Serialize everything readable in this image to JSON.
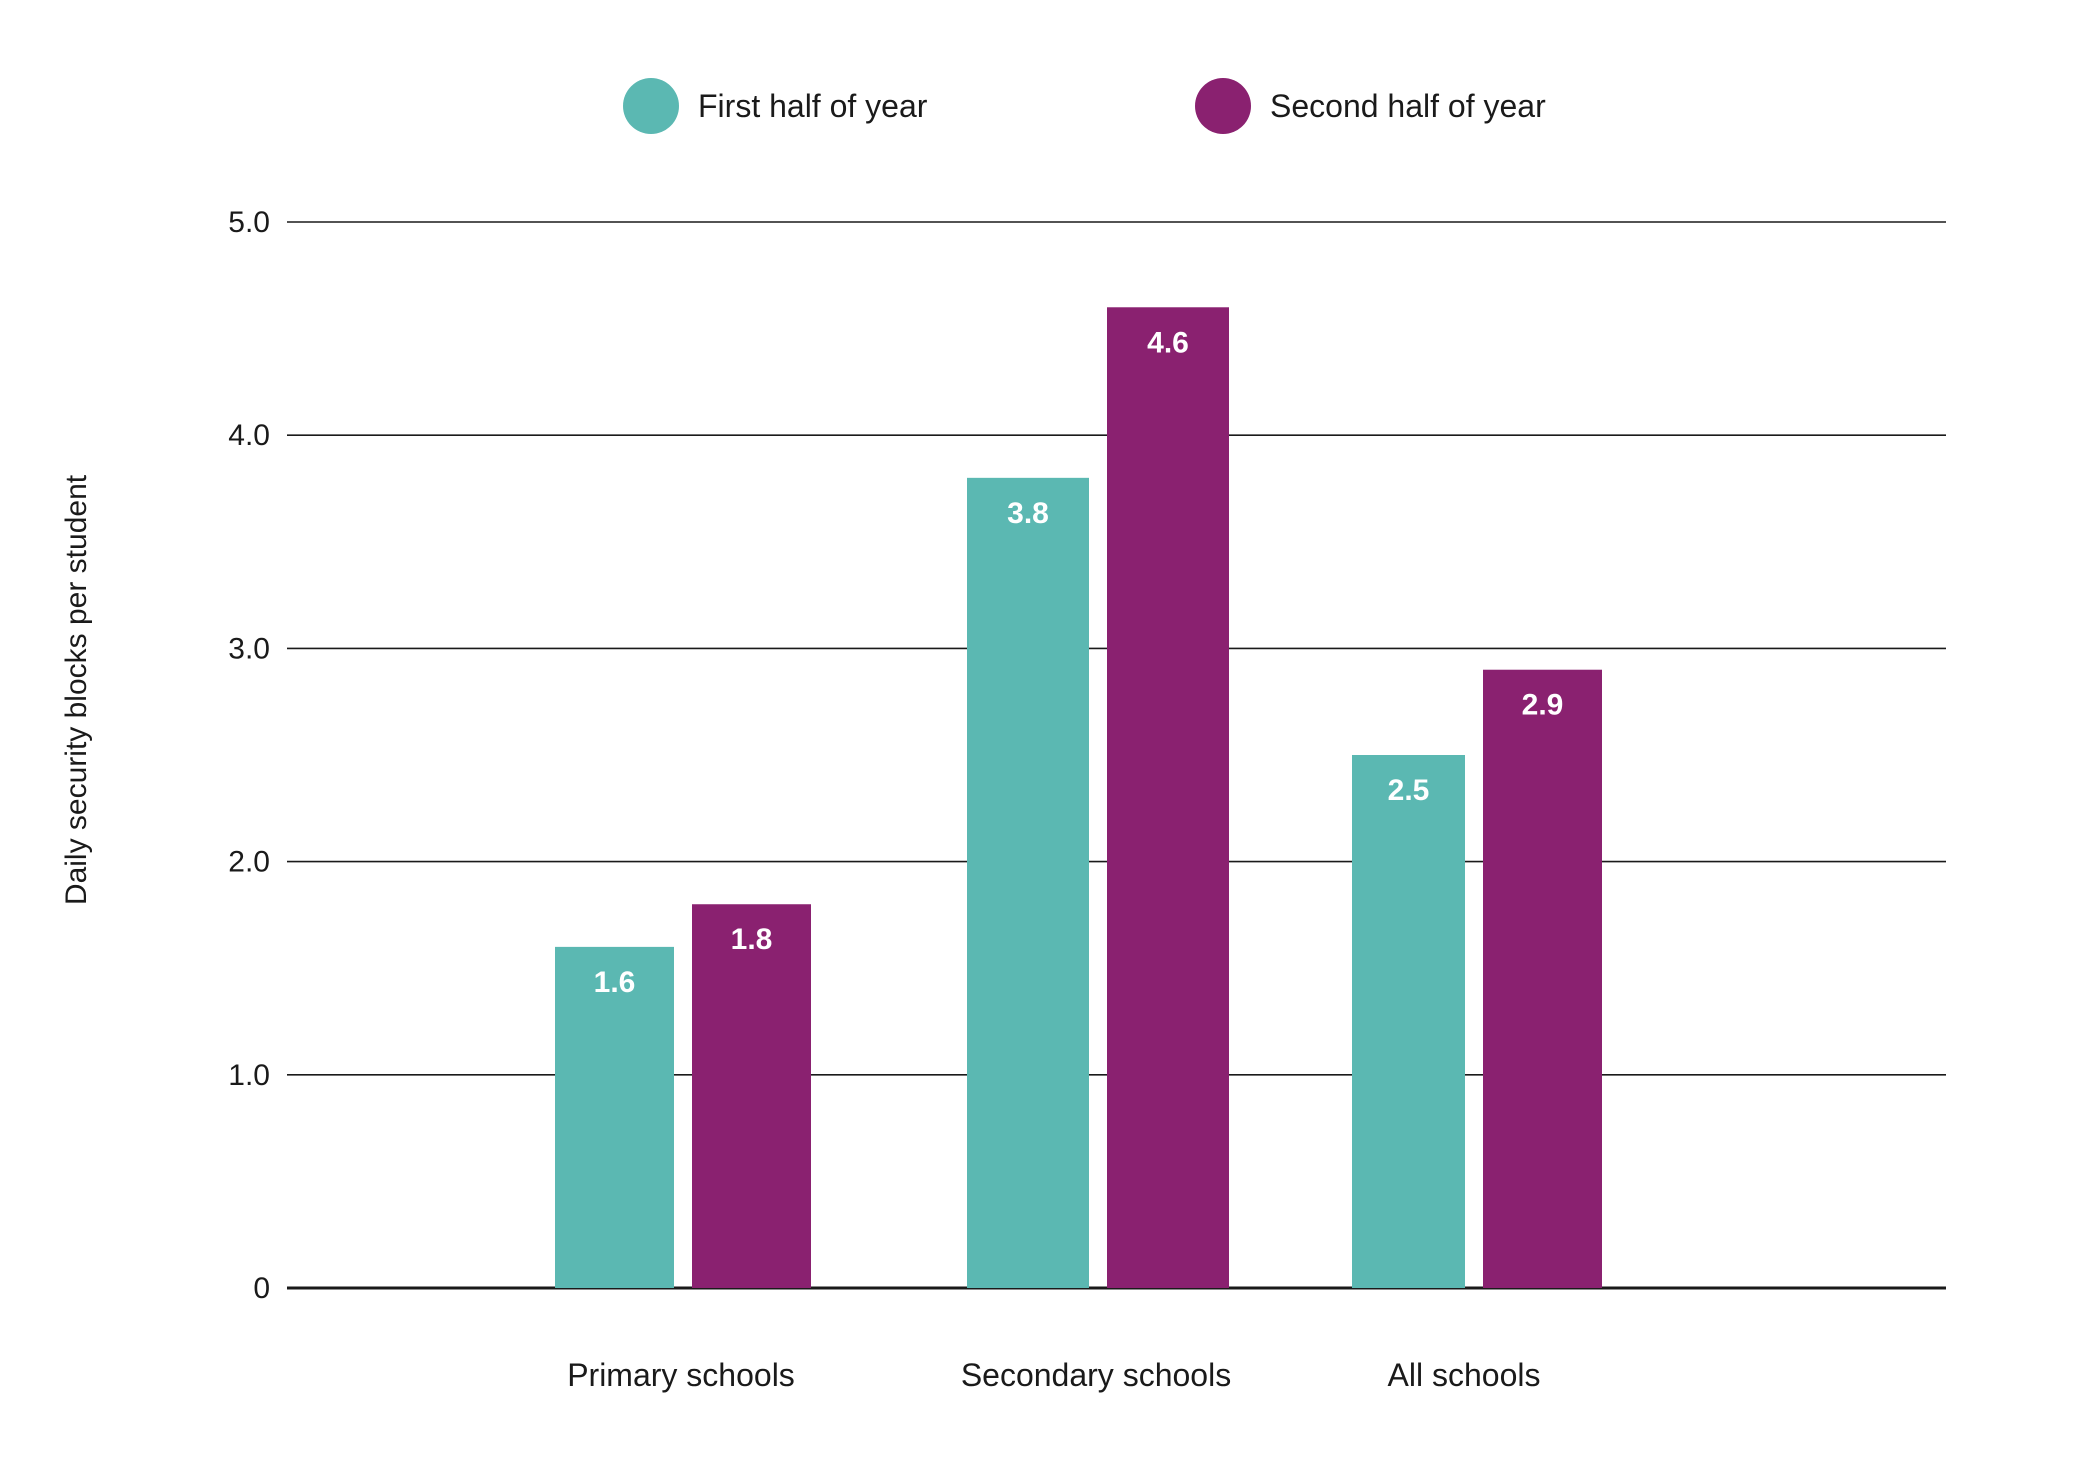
{
  "chart_data": {
    "type": "bar",
    "categories": [
      "Primary schools",
      "Secondary schools",
      "All schools"
    ],
    "series": [
      {
        "name": "First half of year",
        "values": [
          1.6,
          3.8,
          2.5
        ],
        "labels": [
          "1.6",
          "3.8",
          "2.5"
        ],
        "color": "#5bb8b2"
      },
      {
        "name": "Second half of year",
        "values": [
          1.8,
          4.6,
          2.9
        ],
        "labels": [
          "1.8",
          "4.6",
          "2.9"
        ],
        "color": "#8a2170"
      }
    ],
    "ylabel": "Daily security blocks per student",
    "xlabel": "",
    "ylim": [
      0,
      5
    ],
    "yticks": [
      0,
      1,
      2,
      3,
      4,
      5
    ],
    "ytick_labels": [
      "0",
      "1.0",
      "2.0",
      "3.0",
      "4.0",
      "5.0"
    ],
    "grid": true,
    "legend_position": "top-center"
  }
}
